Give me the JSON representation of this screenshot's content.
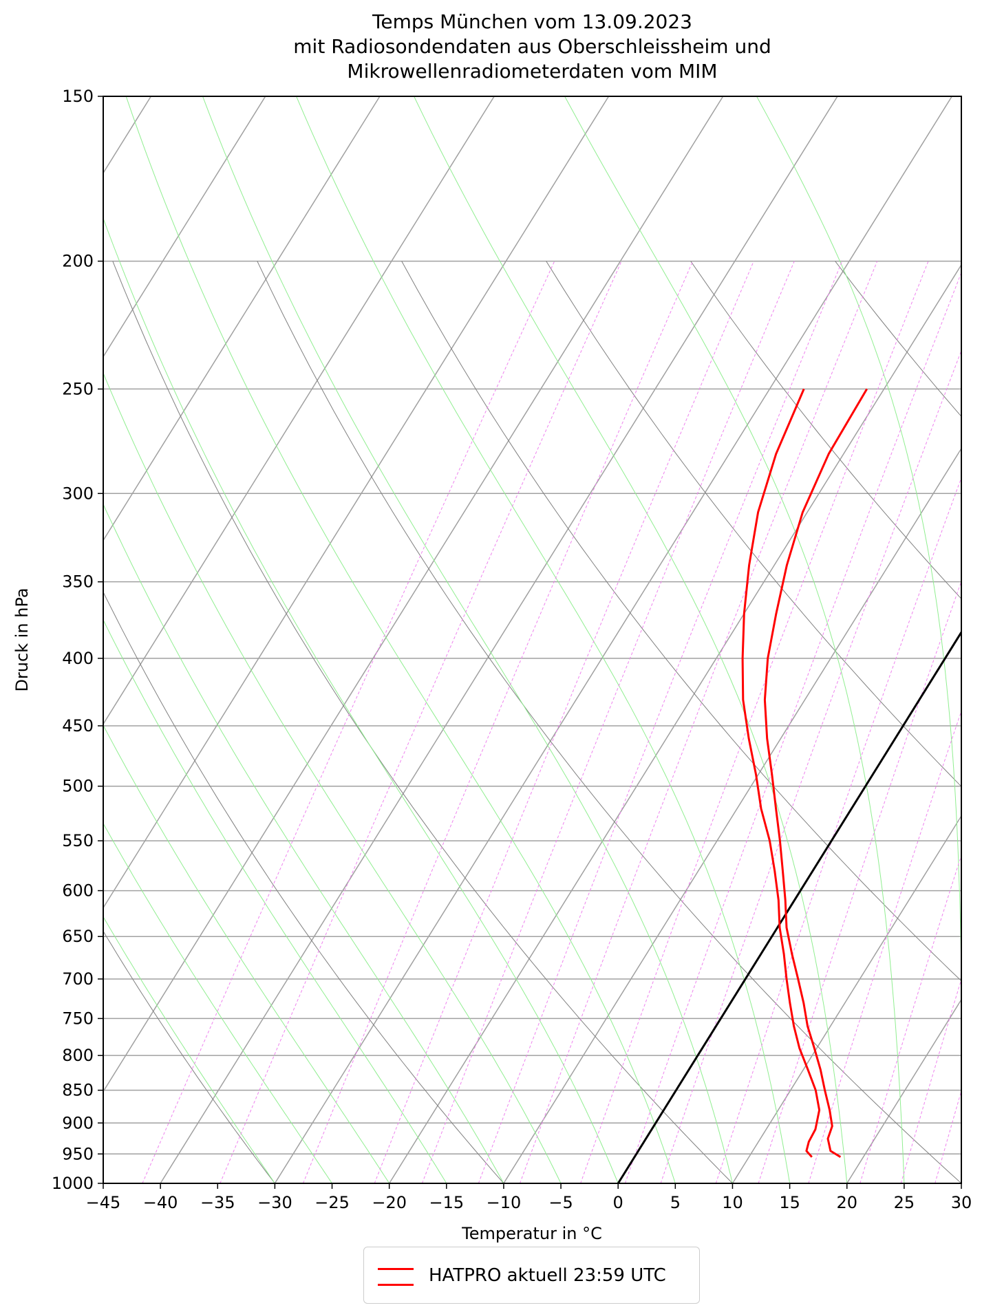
{
  "chart_data": {
    "type": "line",
    "title_lines": [
      "Temps München vom 13.09.2023",
      "mit Radiosondendaten aus Oberschleissheim und",
      "Mikrowellenradiometerdaten vom MIM"
    ],
    "xlabel": "Temperatur in  °C",
    "ylabel": "Druck in hPa",
    "xlim": [
      -45,
      30
    ],
    "ylim": [
      1000,
      150
    ],
    "y_scale": "log",
    "skew": "skew-T log-p",
    "x_ticks": [
      "−45",
      "−40",
      "−35",
      "−30",
      "−25",
      "−20",
      "−15",
      "−10",
      "−5",
      "0",
      "5",
      "10",
      "15",
      "20",
      "25",
      "30"
    ],
    "x_tick_values": [
      -45,
      -40,
      -35,
      -30,
      -25,
      -20,
      -15,
      -10,
      -5,
      0,
      5,
      10,
      15,
      20,
      25,
      30
    ],
    "y_ticks": [
      1000,
      950,
      900,
      850,
      800,
      750,
      700,
      650,
      600,
      550,
      500,
      450,
      400,
      350,
      300,
      250,
      200,
      150
    ],
    "grid": true,
    "legend_position": "below",
    "legend_label": "HATPRO aktuell 23:59 UTC",
    "colors": {
      "temperature": "#ff0000",
      "zero_isotherm": "#000000",
      "isotherms": "#a0a0a0",
      "dry_adiabats": "#808080",
      "moist_adiabats": "#90ee90",
      "mixing_ratio": "#ee82ee",
      "isobars": "#a0a0a0"
    },
    "series": [
      {
        "name": "HATPRO aktuell 23:59 UTC",
        "p": [
          955,
          945,
          930,
          910,
          880,
          850,
          820,
          790,
          760,
          730,
          700,
          670,
          640,
          610,
          580,
          550,
          520,
          490,
          460,
          430,
          400,
          370,
          340,
          310,
          280,
          250
        ],
        "t": [
          15.5,
          14.7,
          14.4,
          14.3,
          13.6,
          12.2,
          10.4,
          8.5,
          6.8,
          5.2,
          3.6,
          2.0,
          0.2,
          -1.4,
          -3.3,
          -5.4,
          -7.9,
          -10.2,
          -12.8,
          -15.4,
          -17.7,
          -20.0,
          -22.2,
          -24.3,
          -25.9,
          -27.0
        ]
      },
      {
        "name": "HATPRO aktuell 23:59 UTC",
        "p": [
          955,
          945,
          925,
          905,
          880,
          850,
          820,
          790,
          760,
          730,
          700,
          670,
          640,
          610,
          580,
          550,
          520,
          490,
          460,
          430,
          400,
          370,
          340,
          310,
          280,
          250
        ],
        "t": [
          18.0,
          16.8,
          15.9,
          15.6,
          14.5,
          13.0,
          11.5,
          9.8,
          8.0,
          6.4,
          4.6,
          2.7,
          0.8,
          -0.8,
          -2.6,
          -4.5,
          -6.6,
          -8.8,
          -11.2,
          -13.5,
          -15.5,
          -17.2,
          -18.9,
          -20.4,
          -21.3,
          -21.5
        ]
      }
    ]
  }
}
